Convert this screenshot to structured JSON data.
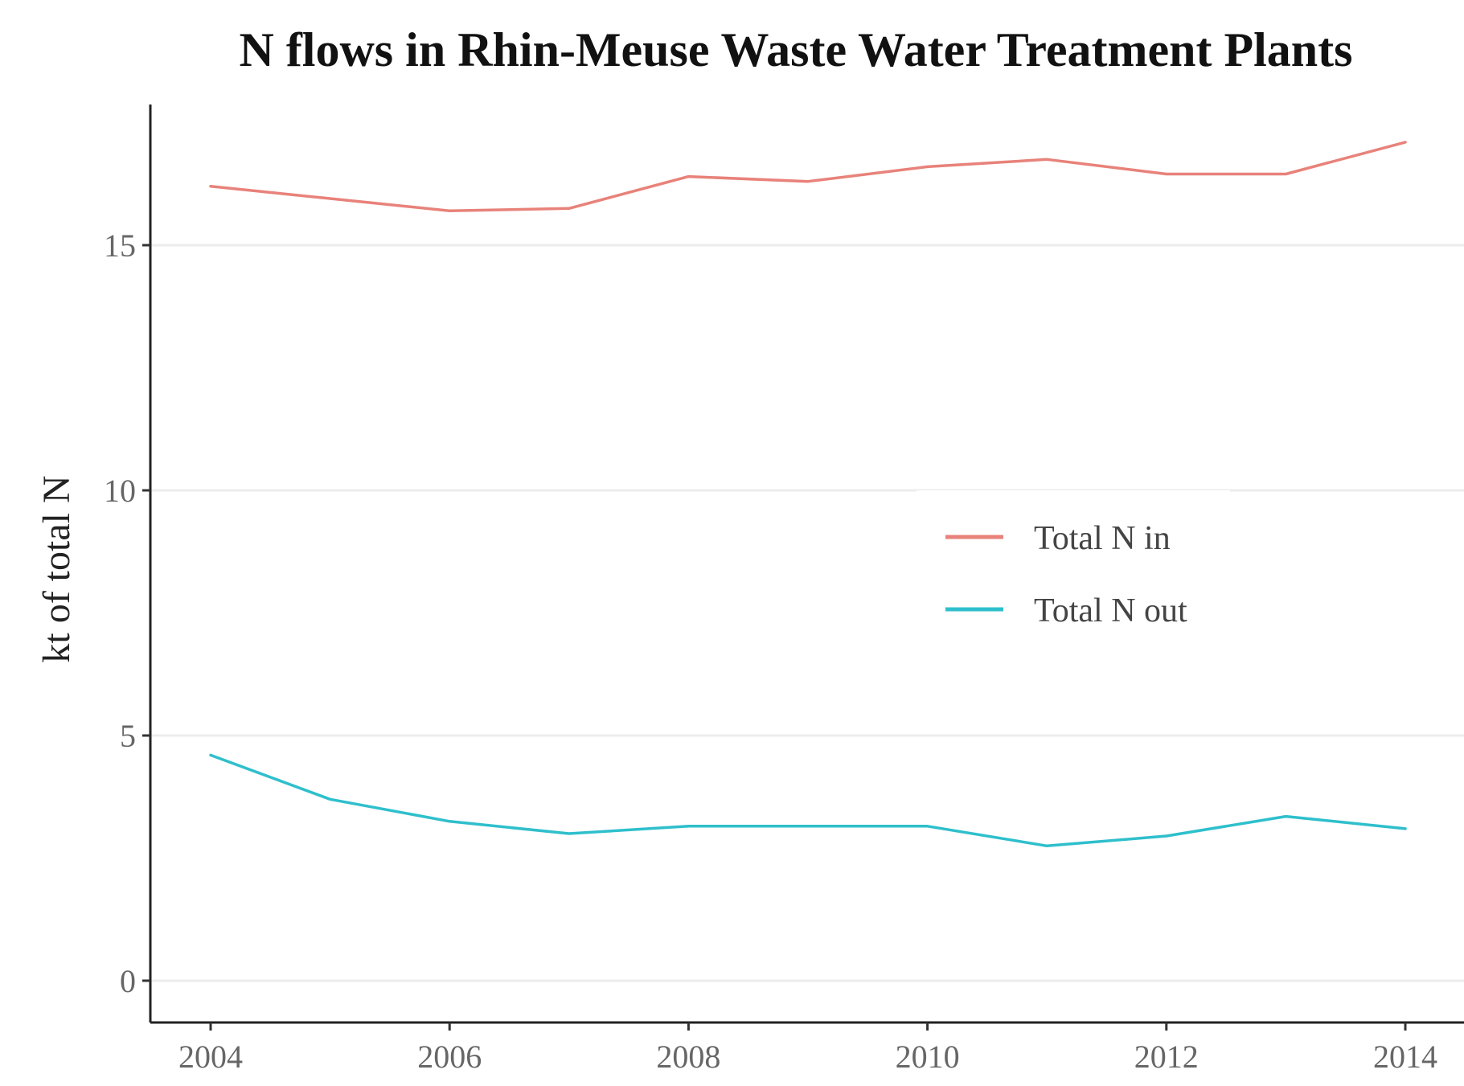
{
  "chart_data": {
    "type": "line",
    "title": "N flows in Rhin-Meuse Waste Water Treatment Plants",
    "xlabel": "",
    "ylabel": "kt of total N",
    "x": [
      2004,
      2005,
      2006,
      2007,
      2008,
      2009,
      2010,
      2011,
      2012,
      2013,
      2014
    ],
    "xlim": [
      2004,
      2014
    ],
    "ylim": [
      0,
      17.2
    ],
    "xticks": [
      2004,
      2006,
      2008,
      2010,
      2012,
      2014
    ],
    "yticks": [
      0,
      5,
      10,
      15
    ],
    "grid": true,
    "legend_position": "right-center",
    "series": [
      {
        "name": "Total N in",
        "color": "#e8827a",
        "values": [
          16.2,
          15.95,
          15.7,
          15.75,
          16.4,
          16.3,
          16.6,
          16.75,
          16.45,
          16.45,
          17.1
        ]
      },
      {
        "name": "Total N out",
        "color": "#2fbfcc",
        "values": [
          4.6,
          3.7,
          3.25,
          3.0,
          3.15,
          3.15,
          3.15,
          2.75,
          2.95,
          3.35,
          3.1
        ]
      }
    ]
  }
}
